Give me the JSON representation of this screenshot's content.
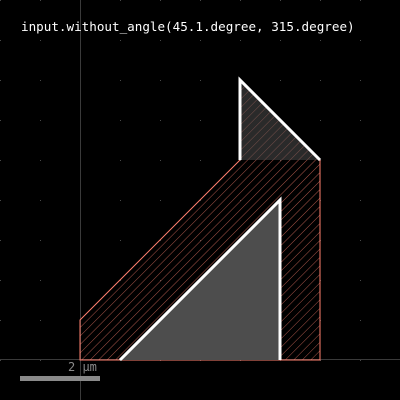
{
  "caption": "input.without_angle(45.1.degree, 315.degree)",
  "scale_bar": {
    "label": "2 µm"
  },
  "colors": {
    "background": "#000000",
    "grid_dot": "#4a4a4a",
    "axis": "#3a3a3a",
    "result_outline": "#ff7f6e",
    "result_hatch": "#ff7f6e",
    "input_fill": "#4d4d4d",
    "input_stroke": "#ffffff",
    "scale_bar": "#8a8a8a"
  }
}
